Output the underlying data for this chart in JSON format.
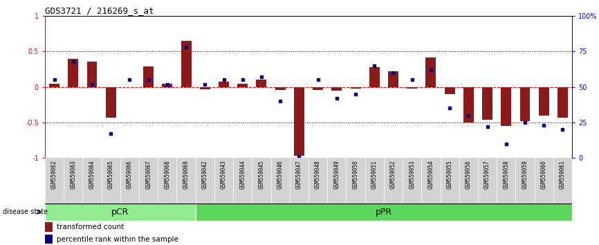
{
  "title": "GDS3721 / 216269_s_at",
  "samples": [
    "GSM559062",
    "GSM559063",
    "GSM559064",
    "GSM559065",
    "GSM559066",
    "GSM559067",
    "GSM559068",
    "GSM559069",
    "GSM559042",
    "GSM559043",
    "GSM559044",
    "GSM559045",
    "GSM559046",
    "GSM559047",
    "GSM559048",
    "GSM559049",
    "GSM559050",
    "GSM559051",
    "GSM559052",
    "GSM559053",
    "GSM559054",
    "GSM559055",
    "GSM559056",
    "GSM559057",
    "GSM559058",
    "GSM559059",
    "GSM559060",
    "GSM559061"
  ],
  "red_values": [
    0.05,
    0.4,
    0.36,
    -0.43,
    0.0,
    0.29,
    0.05,
    0.65,
    -0.03,
    0.07,
    0.05,
    0.1,
    -0.04,
    -0.97,
    -0.04,
    -0.05,
    -0.02,
    0.28,
    0.22,
    -0.02,
    0.42,
    -0.1,
    -0.5,
    -0.46,
    -0.55,
    -0.48,
    -0.4,
    -0.43
  ],
  "blue_values": [
    55,
    68,
    52,
    17,
    55,
    55,
    52,
    78,
    52,
    55,
    55,
    57,
    40,
    1,
    55,
    42,
    45,
    65,
    60,
    55,
    62,
    35,
    30,
    22,
    10,
    25,
    23,
    20
  ],
  "pcr_count": 8,
  "ppr_count": 20,
  "group1_label": "pCR",
  "group2_label": "pPR",
  "legend1": "transformed count",
  "legend2": "percentile rank within the sample",
  "bar_color": "#8B1A1A",
  "dot_color": "#00008B",
  "pcr_color": "#90EE90",
  "ppr_color": "#5CD65C",
  "ylim": [
    -1.0,
    1.0
  ],
  "dotted_lines": [
    0.5,
    -0.5
  ],
  "background_color": "#FFFFFF"
}
